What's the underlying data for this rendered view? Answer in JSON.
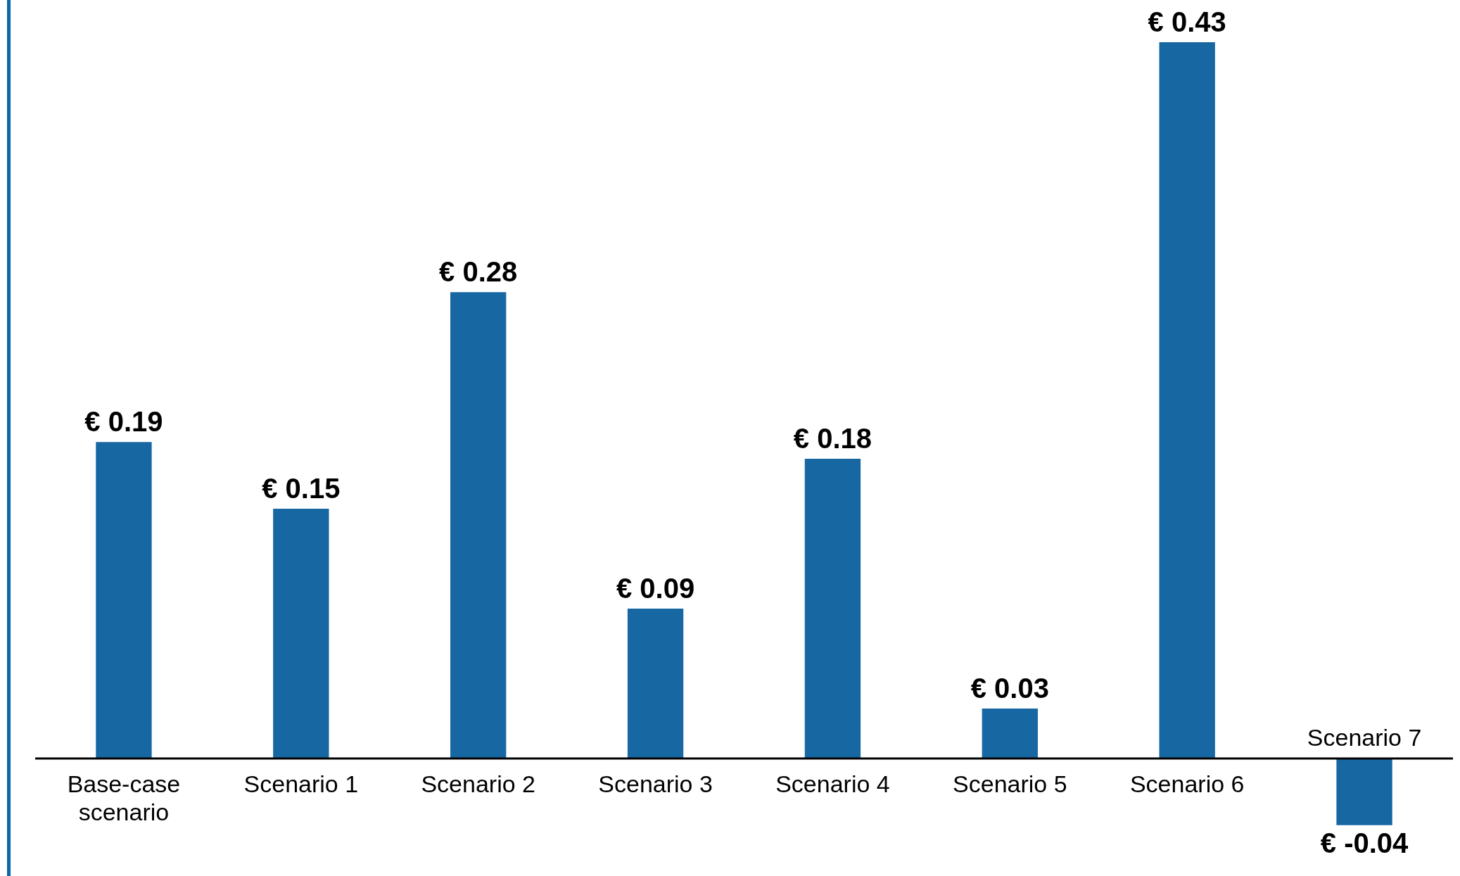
{
  "chart_data": {
    "type": "bar",
    "categories": [
      "Base-case scenario",
      "Scenario 1",
      "Scenario 2",
      "Scenario 3",
      "Scenario 4",
      "Scenario 5",
      "Scenario 6",
      "Scenario 7"
    ],
    "values": [
      0.19,
      0.15,
      0.28,
      0.09,
      0.18,
      0.03,
      0.43,
      -0.04
    ],
    "value_labels": [
      "€ 0.19",
      "€ 0.15",
      "€ 0.28",
      "€ 0.09",
      "€ 0.18",
      "€ 0.03",
      "€ 0.43",
      "€ -0.04"
    ],
    "color": "#1767a3",
    "grid": false,
    "legend": false
  }
}
